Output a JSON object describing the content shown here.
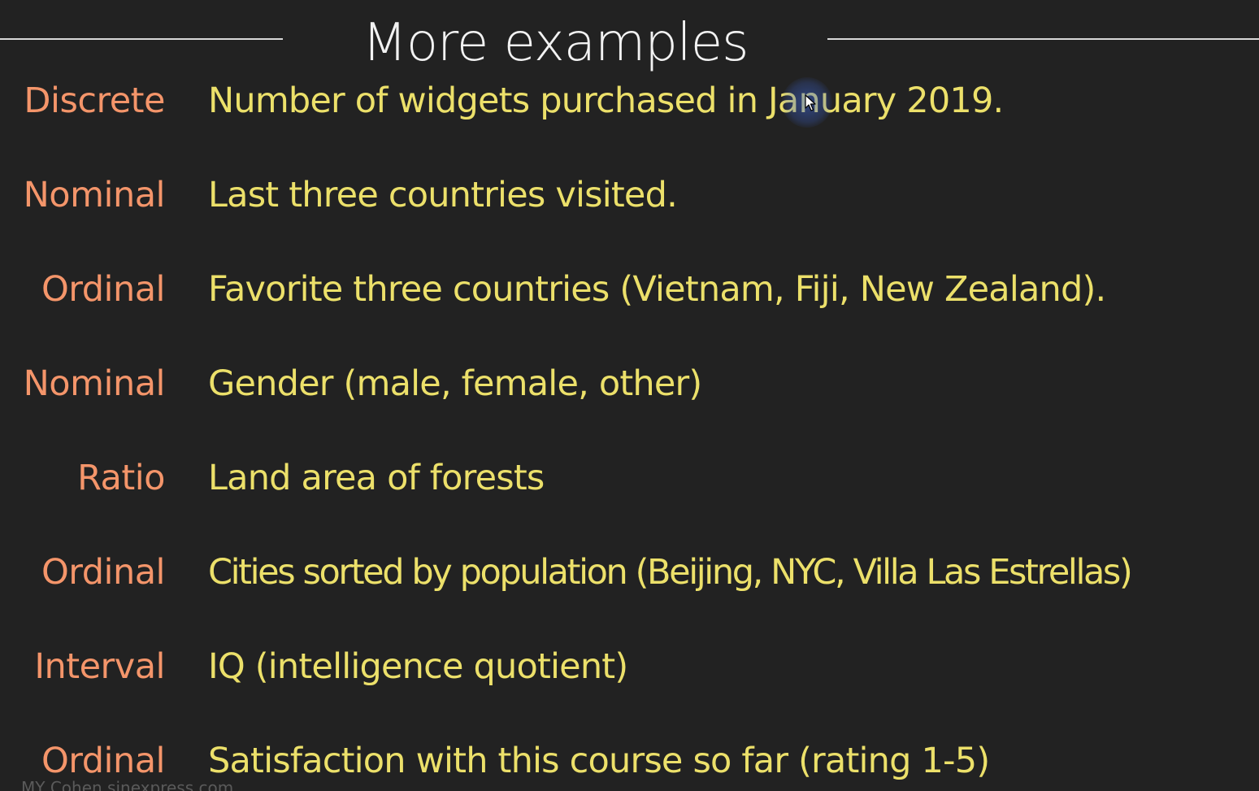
{
  "slide": {
    "title": "More examples",
    "rows": [
      {
        "label": "Discrete",
        "desc": "Number of widgets purchased in January 2019."
      },
      {
        "label": "Nominal",
        "desc": "Last three countries visited."
      },
      {
        "label": "Ordinal",
        "desc": "Favorite three countries (Vietnam, Fiji, New Zealand)."
      },
      {
        "label": "Nominal",
        "desc": "Gender (male, female, other)"
      },
      {
        "label": "Ratio",
        "desc": "Land area of forests"
      },
      {
        "label": "Ordinal",
        "desc": "Cities sorted by population (Beijing, NYC, Villa Las Estrellas)"
      },
      {
        "label": "Interval",
        "desc": "IQ (intelligence quotient)"
      },
      {
        "label": "Ordinal",
        "desc": "Satisfaction with this course so far (rating 1-5)"
      }
    ],
    "footer": "MY Cohen    sinexpress.com"
  },
  "colors": {
    "background": "#222222",
    "title": "#f2f2f2",
    "label": "#f4956a",
    "description": "#ece06a",
    "rule": "#d8d8d8"
  },
  "icons": {
    "cursor": "mouse-pointer-icon"
  }
}
